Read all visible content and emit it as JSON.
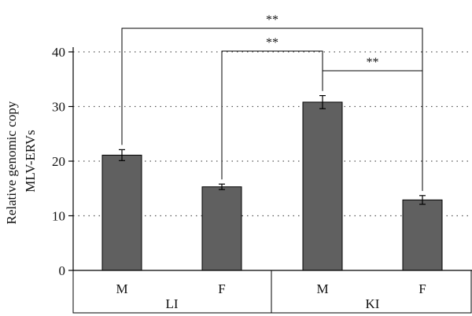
{
  "chart_data": {
    "type": "bar",
    "ylabel_lines": [
      "Relative genomic copy",
      "MLV-ERVs"
    ],
    "ylim": [
      0,
      40
    ],
    "yticks": [
      0,
      10,
      20,
      30,
      40
    ],
    "grid": "horizontal dotted",
    "bar_color": "#606060",
    "groups": [
      {
        "label": "LI",
        "categories": [
          "M",
          "F"
        ]
      },
      {
        "label": "KI",
        "categories": [
          "M",
          "F"
        ]
      }
    ],
    "bars": [
      {
        "group": "LI",
        "category": "M",
        "value": 21.1,
        "error": 1.0
      },
      {
        "group": "LI",
        "category": "F",
        "value": 15.3,
        "error": 0.5
      },
      {
        "group": "KI",
        "category": "M",
        "value": 30.8,
        "error": 1.2
      },
      {
        "group": "KI",
        "category": "F",
        "value": 12.9,
        "error": 0.8
      }
    ],
    "significance": [
      {
        "between": [
          "LI M",
          "KI F"
        ],
        "label": "**"
      },
      {
        "between": [
          "LI F",
          "KI M"
        ],
        "label": "**"
      },
      {
        "between": [
          "KI M",
          "KI F"
        ],
        "label": "**"
      }
    ]
  }
}
